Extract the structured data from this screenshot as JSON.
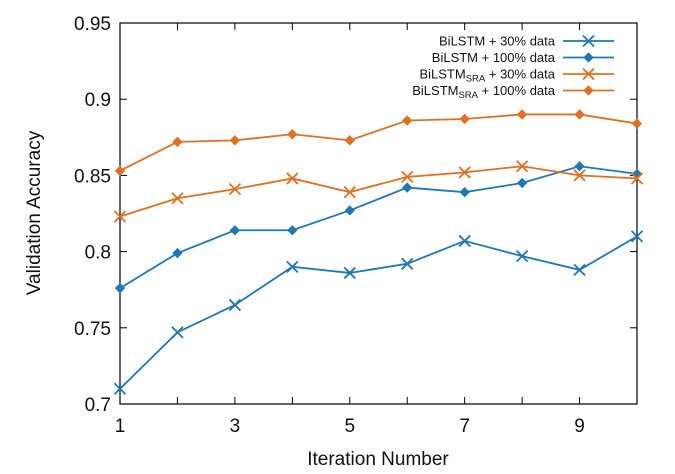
{
  "chart_data": {
    "type": "line",
    "xlabel": "Iteration Number",
    "ylabel": "Validation Accuracy",
    "xlim": [
      1,
      10
    ],
    "ylim": [
      0.7,
      0.95
    ],
    "x_ticks": [
      "1",
      "3",
      "5",
      "7",
      "9"
    ],
    "y_ticks": [
      "0.7",
      "0.75",
      "0.8",
      "0.85",
      "0.9",
      "0.95"
    ],
    "x": [
      1,
      2,
      3,
      4,
      5,
      6,
      7,
      8,
      9,
      10
    ],
    "legend_position": "top-right",
    "grid": false,
    "series": [
      {
        "name": "BiLSTM + 30% data",
        "name_base": "BiLSTM",
        "name_sub": "",
        "name_rest": " + 30% data",
        "color": "#1f77b4",
        "marker": "x",
        "values": [
          0.71,
          0.747,
          0.765,
          0.79,
          0.786,
          0.792,
          0.807,
          0.797,
          0.788,
          0.81
        ]
      },
      {
        "name": "BiLSTM + 100% data",
        "name_base": "BiLSTM",
        "name_sub": "",
        "name_rest": " + 100% data",
        "color": "#1f77b4",
        "marker": "diamond",
        "values": [
          0.776,
          0.799,
          0.814,
          0.814,
          0.827,
          0.842,
          0.839,
          0.845,
          0.856,
          0.851
        ]
      },
      {
        "name": "BiLSTMSRA + 30% data",
        "name_base": "BiLSTM",
        "name_sub": "SRA",
        "name_rest": " + 30% data",
        "color": "#e07020",
        "marker": "x",
        "values": [
          0.823,
          0.835,
          0.841,
          0.848,
          0.839,
          0.849,
          0.852,
          0.856,
          0.85,
          0.848
        ]
      },
      {
        "name": "BiLSTMSRA + 100% data",
        "name_base": "BiLSTM",
        "name_sub": "SRA",
        "name_rest": " + 100% data",
        "color": "#e07020",
        "marker": "diamond",
        "values": [
          0.853,
          0.872,
          0.873,
          0.877,
          0.873,
          0.886,
          0.887,
          0.89,
          0.89,
          0.884
        ]
      }
    ]
  }
}
